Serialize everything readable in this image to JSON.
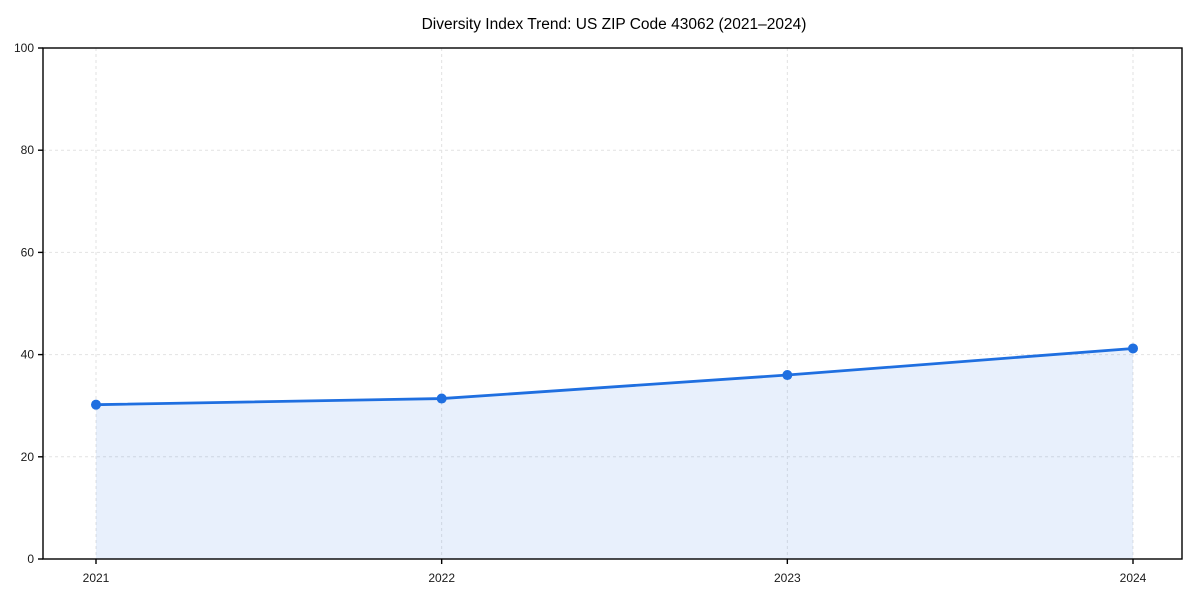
{
  "chart_data": {
    "type": "line",
    "title": "Diversity Index Trend: US ZIP Code 43062 (2021–2024)",
    "categories": [
      "2021",
      "2022",
      "2023",
      "2024"
    ],
    "series": [
      {
        "name": "Diversity Index",
        "values": [
          30.2,
          31.4,
          36.0,
          41.2
        ]
      }
    ],
    "xlabel": "",
    "ylabel": "",
    "ylim": [
      0,
      100
    ],
    "yticks": [
      0,
      20,
      40,
      60,
      80,
      100
    ],
    "grid": "dashed-both-axes",
    "legend": "none",
    "area_fill": true,
    "style": {
      "line_color": "#1f6fe0",
      "marker_color": "#1f6fe0",
      "area_fill_color": "#1f6fe0",
      "area_fill_opacity": 0.1,
      "grid_color": "#e2e2e2",
      "axis_color": "#000000",
      "tick_label_color": "#1a1a1a",
      "title_color": "#000000",
      "background_color": "#ffffff"
    }
  }
}
